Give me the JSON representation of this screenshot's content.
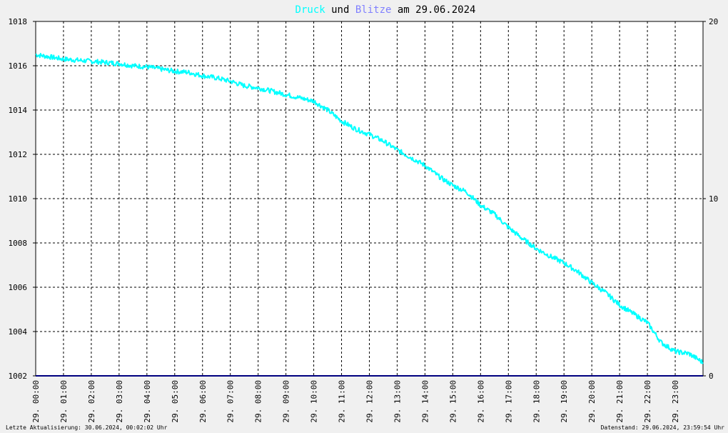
{
  "title": {
    "series1": "Druck",
    "joiner": "und",
    "series2": "Blitze",
    "suffix": "am 29.06.2024"
  },
  "footer": {
    "left": "Letzte Aktualisierung: 30.06.2024, 00:02:02 Uhr",
    "right": "Datenstand: 29.06.2024, 23:59:54 Uhr"
  },
  "colors": {
    "pressure": "#00ffff",
    "lightning": "#000080",
    "title_series1": "#00ffff",
    "title_series2": "#8080ff",
    "grid": "#000000",
    "background": "#f0f0f0",
    "plot_background": "#ffffff"
  },
  "chart_data": {
    "type": "line",
    "title": "Druck und Blitze am 29.06.2024",
    "x_ticks": [
      "29. 00:00",
      "29. 01:00",
      "29. 02:00",
      "29. 03:00",
      "29. 04:00",
      "29. 05:00",
      "29. 06:00",
      "29. 07:00",
      "29. 08:00",
      "29. 09:00",
      "29. 10:00",
      "29. 11:00",
      "29. 12:00",
      "29. 13:00",
      "29. 14:00",
      "29. 15:00",
      "29. 16:00",
      "29. 17:00",
      "29. 18:00",
      "29. 19:00",
      "29. 20:00",
      "29. 21:00",
      "29. 22:00",
      "29. 23:00"
    ],
    "x_range_hours": [
      0,
      24
    ],
    "y_left": {
      "range": [
        1002,
        1018
      ],
      "ticks": [
        "1002",
        "1004",
        "1006",
        "1008",
        "1010",
        "1012",
        "1014",
        "1016",
        "1018"
      ]
    },
    "y_right": {
      "range": [
        0,
        20
      ],
      "ticks": [
        "0",
        "10",
        "20"
      ]
    },
    "grid": true,
    "series": [
      {
        "name": "Druck",
        "axis": "left",
        "x_hours": [
          0,
          0.5,
          1,
          1.5,
          2,
          2.5,
          3,
          3.5,
          4,
          4.5,
          5,
          5.5,
          6,
          6.5,
          7,
          7.5,
          8,
          8.5,
          9,
          9.5,
          10,
          10.5,
          11,
          11.5,
          12,
          12.5,
          13,
          13.5,
          14,
          14.5,
          15,
          15.5,
          16,
          16.5,
          17,
          17.5,
          18,
          18.5,
          19,
          19.5,
          20,
          20.5,
          21,
          21.5,
          22,
          22.5,
          23,
          23.5,
          24
        ],
        "values": [
          1016.5,
          1016.4,
          1016.3,
          1016.25,
          1016.2,
          1016.15,
          1016.1,
          1016.0,
          1015.95,
          1015.85,
          1015.75,
          1015.7,
          1015.55,
          1015.45,
          1015.3,
          1015.1,
          1015.0,
          1014.85,
          1014.7,
          1014.55,
          1014.4,
          1014.0,
          1013.5,
          1013.15,
          1012.9,
          1012.6,
          1012.2,
          1011.85,
          1011.5,
          1011.0,
          1010.6,
          1010.3,
          1009.7,
          1009.3,
          1008.7,
          1008.2,
          1007.75,
          1007.4,
          1007.1,
          1006.7,
          1006.2,
          1005.75,
          1005.2,
          1004.8,
          1004.4,
          1003.5,
          1003.1,
          1003.0,
          1002.6
        ]
      },
      {
        "name": "Blitze",
        "axis": "right",
        "x_hours": [
          0,
          24
        ],
        "values": [
          0,
          0
        ]
      }
    ]
  }
}
